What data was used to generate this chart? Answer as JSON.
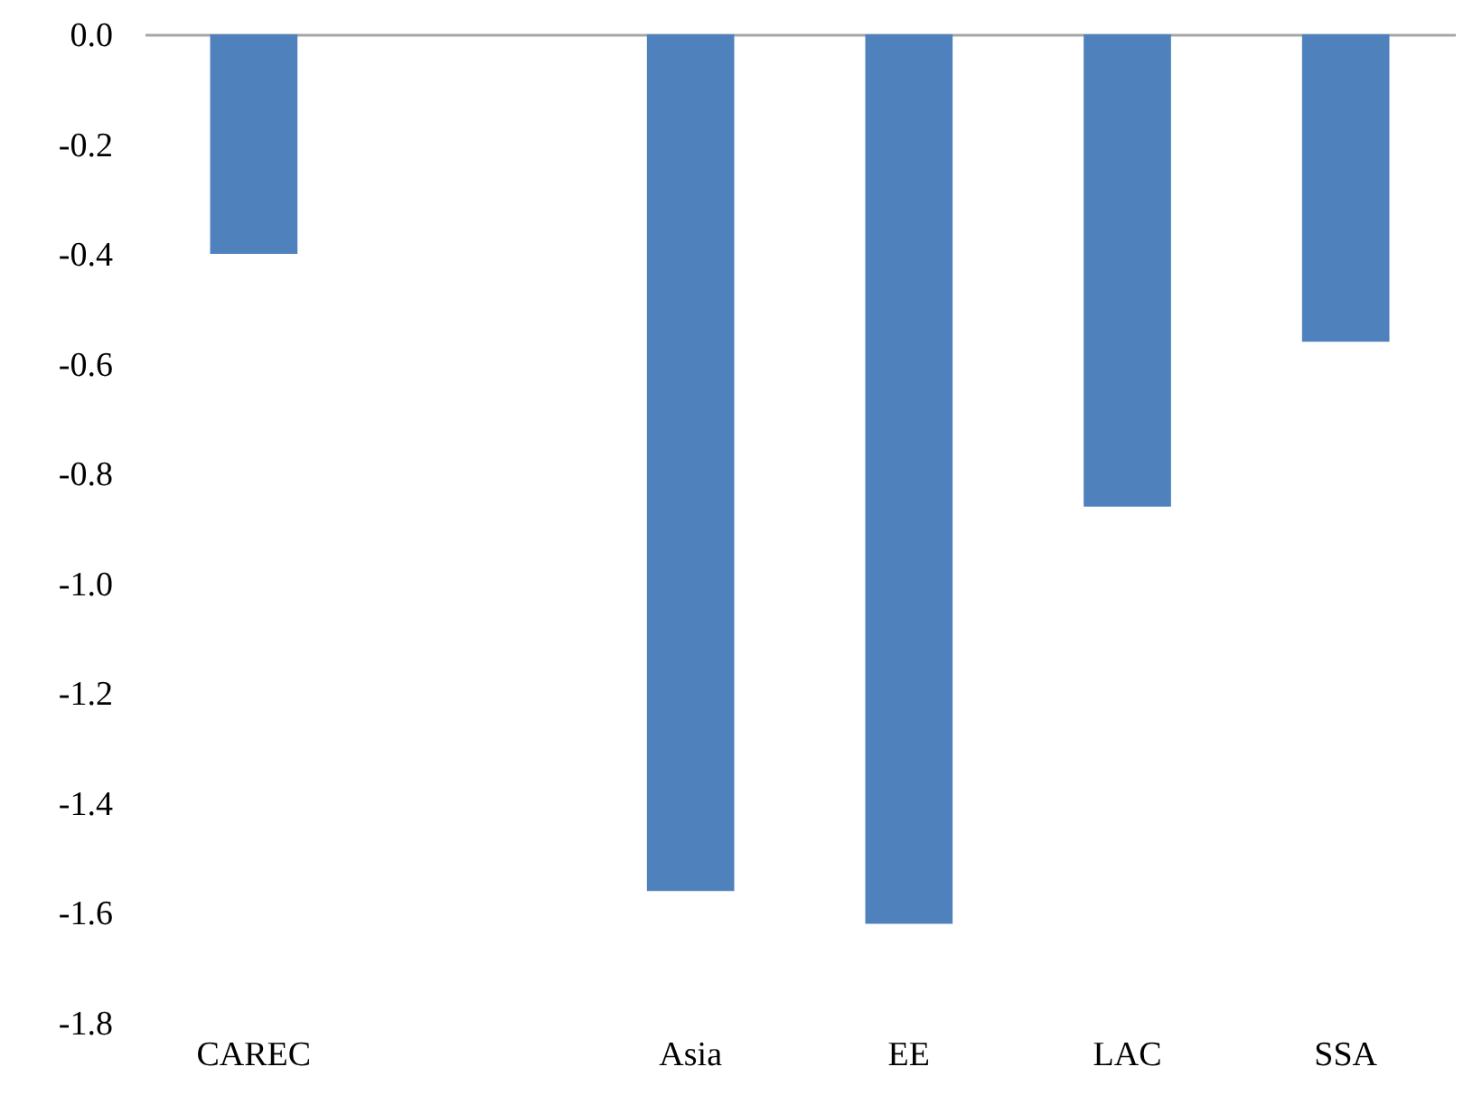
{
  "chart_data": {
    "type": "bar",
    "categories": [
      "CAREC",
      null,
      "Asia",
      "EE",
      "LAC",
      "SSA"
    ],
    "series": [
      {
        "color": "#4f81bd",
        "values": [
          -0.4,
          null,
          -1.56,
          -1.62,
          -0.86,
          -0.56
        ]
      }
    ],
    "ylim": [
      -1.8,
      0
    ],
    "yticks": [
      {
        "value": 0,
        "label": "0.0"
      },
      {
        "value": -0.2,
        "label": "-0.2"
      },
      {
        "value": -0.4,
        "label": "-0.4"
      },
      {
        "value": -0.6,
        "label": "-0.6"
      },
      {
        "value": -0.8,
        "label": "-0.8"
      },
      {
        "value": -1.0,
        "label": "-1.0"
      },
      {
        "value": -1.2,
        "label": "-1.2"
      },
      {
        "value": -1.4,
        "label": "-1.4"
      },
      {
        "value": -1.6,
        "label": "-1.6"
      },
      {
        "value": -1.8,
        "label": "-1.8"
      }
    ],
    "grid": false,
    "legend": false
  }
}
